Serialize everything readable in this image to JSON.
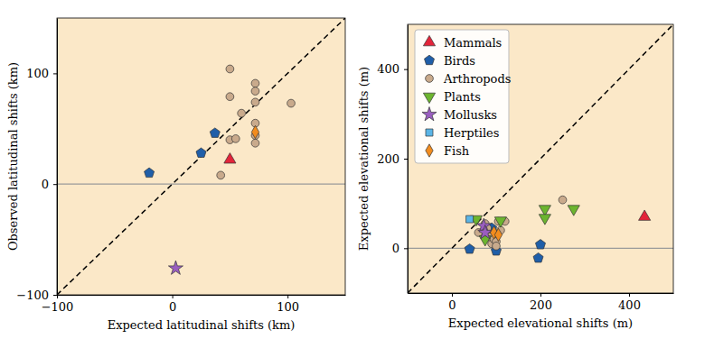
{
  "chart_data": [
    {
      "type": "scatter",
      "xlabel": "Expected latitudinal shifts (km)",
      "ylabel": "Observed latitudinal shifts (km)",
      "xlim": [
        -100,
        150
      ],
      "ylim": [
        -100,
        150
      ],
      "xticks": [
        {
          "value": -100,
          "label": "−100"
        },
        0,
        100
      ],
      "yticks": [
        {
          "value": -100,
          "label": "−100"
        },
        0,
        100
      ],
      "hline": 0,
      "series": [
        {
          "name": "Mammals",
          "color": "#e3243a",
          "marker": "triangle-up",
          "x": [
            50
          ],
          "values": [
            22
          ]
        },
        {
          "name": "Birds",
          "color": "#1f5ea8",
          "marker": "pentagon",
          "x": [
            -20,
            25,
            37
          ],
          "values": [
            10,
            28,
            46
          ]
        },
        {
          "name": "Arthropods",
          "color": "#c9aa8c",
          "marker": "circle",
          "x": [
            50,
            50,
            50,
            55,
            60,
            42,
            72,
            72,
            72,
            72,
            72,
            72,
            103
          ],
          "values": [
            104,
            79,
            40,
            41,
            64,
            8,
            91,
            84,
            74,
            55,
            44,
            37,
            73
          ]
        },
        {
          "name": "Mollusks",
          "color": "#9a5ec0",
          "marker": "star",
          "x": [
            3
          ],
          "values": [
            -76
          ]
        },
        {
          "name": "Fish",
          "color": "#f28c1e",
          "marker": "diamond",
          "x": [
            72
          ],
          "values": [
            47
          ]
        }
      ]
    },
    {
      "type": "scatter",
      "xlabel": "Expected elevational shifts (m)",
      "ylabel": "Expected elevational shifts (m)",
      "xlim": [
        -100,
        500
      ],
      "ylim": [
        -100,
        500
      ],
      "xticks": [
        0,
        200,
        400
      ],
      "yticks": [
        0,
        200,
        400
      ],
      "hline": 0,
      "legend": "upper left",
      "series": [
        {
          "name": "Mammals",
          "color": "#e3243a",
          "marker": "triangle-up",
          "x": [
            435
          ],
          "values": [
            70
          ]
        },
        {
          "name": "Birds",
          "color": "#1f5ea8",
          "marker": "pentagon",
          "x": [
            40,
            100,
            195,
            200,
            90
          ],
          "values": [
            -2,
            -6,
            -22,
            8,
            45
          ]
        },
        {
          "name": "Arthropods",
          "color": "#c9aa8c",
          "marker": "circle",
          "x": [
            60,
            75,
            85,
            90,
            95,
            100,
            105,
            110,
            120,
            100,
            250,
            80
          ],
          "values": [
            35,
            55,
            25,
            10,
            20,
            15,
            60,
            40,
            60,
            5,
            108,
            45
          ]
        },
        {
          "name": "Plants",
          "color": "#6cb52f",
          "marker": "triangle-down",
          "x": [
            55,
            75,
            110,
            210,
            210,
            275
          ],
          "values": [
            65,
            20,
            62,
            88,
            68,
            88
          ]
        },
        {
          "name": "Mollusks",
          "color": "#9a5ec0",
          "marker": "star",
          "x": [
            72,
            75
          ],
          "values": [
            50,
            35
          ]
        },
        {
          "name": "Herptiles",
          "color": "#5bb5e6",
          "marker": "square",
          "x": [
            40
          ],
          "values": [
            65
          ]
        },
        {
          "name": "Fish",
          "color": "#f28c1e",
          "marker": "diamond",
          "x": [
            95,
            105
          ],
          "values": [
            35,
            30
          ]
        }
      ]
    }
  ]
}
